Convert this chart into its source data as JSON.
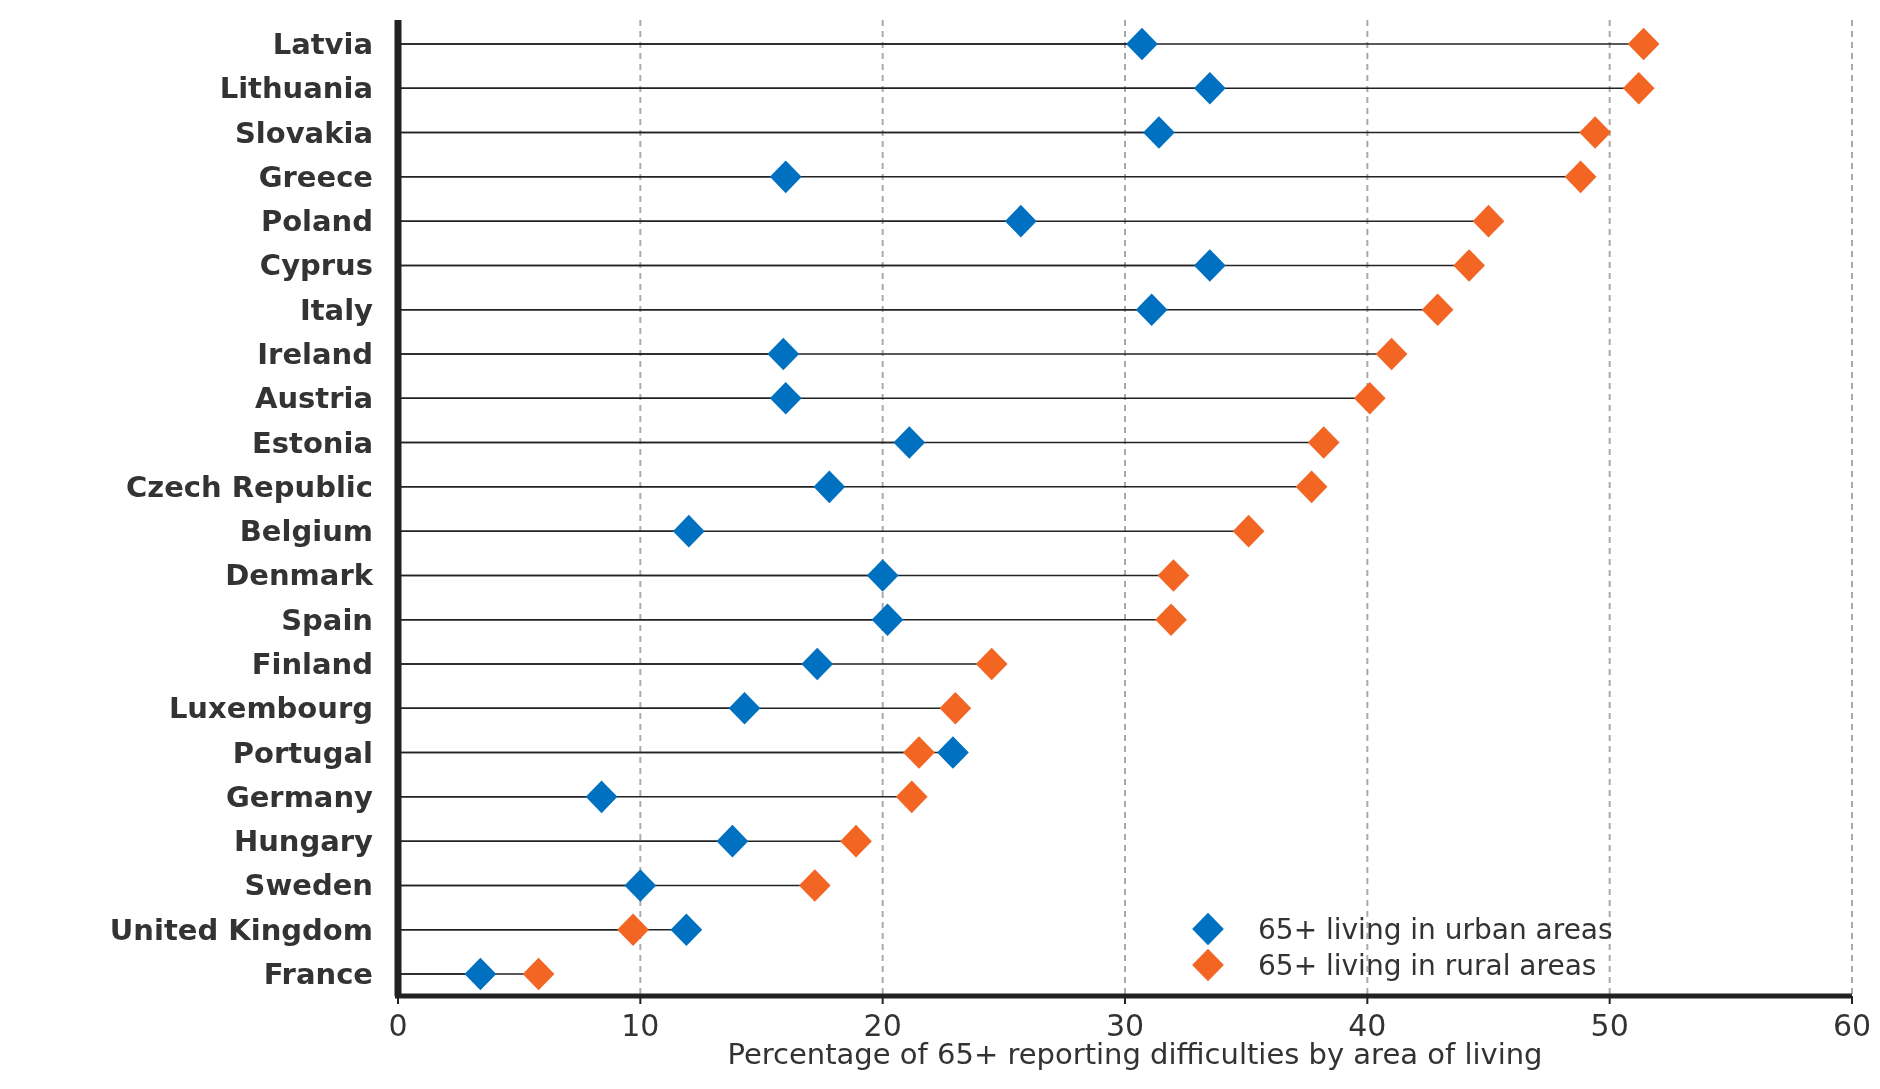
{
  "chart_data": {
    "type": "lollipop",
    "orientation": "horizontal",
    "xlabel": "Percentage of 65+ reporting difficulties by area of living",
    "categories": [
      "Latvia",
      "Lithuania",
      "Slovakia",
      "Greece",
      "Poland",
      "Cyprus",
      "Italy",
      "Ireland",
      "Austria",
      "Estonia",
      "Czech Republic",
      "Belgium",
      "Denmark",
      "Spain",
      "Finland",
      "Luxembourg",
      "Portugal",
      "Germany",
      "Hungary",
      "Sweden",
      "United Kingdom",
      "France"
    ],
    "series": [
      {
        "name": "65+ living in urban areas",
        "color": "#0070c0",
        "values": [
          30.7,
          33.5,
          31.4,
          16.0,
          25.7,
          33.5,
          31.1,
          15.9,
          16.0,
          21.1,
          17.8,
          12.0,
          20.0,
          20.2,
          17.3,
          14.3,
          22.9,
          8.4,
          13.8,
          10.0,
          11.9,
          3.4
        ]
      },
      {
        "name": "65+ living in rural areas",
        "color": "#f26522",
        "values": [
          51.4,
          51.2,
          49.4,
          48.8,
          45.0,
          44.2,
          42.9,
          41.0,
          40.1,
          38.2,
          37.7,
          35.1,
          32.0,
          31.9,
          24.5,
          23.0,
          21.5,
          21.2,
          18.9,
          17.2,
          9.7,
          5.8
        ]
      }
    ],
    "xlim": [
      0,
      60
    ],
    "xticks": [
      0,
      10,
      20,
      30,
      40,
      50,
      60
    ],
    "grid": "x",
    "legend": "bottom right",
    "marker": "diamond"
  }
}
